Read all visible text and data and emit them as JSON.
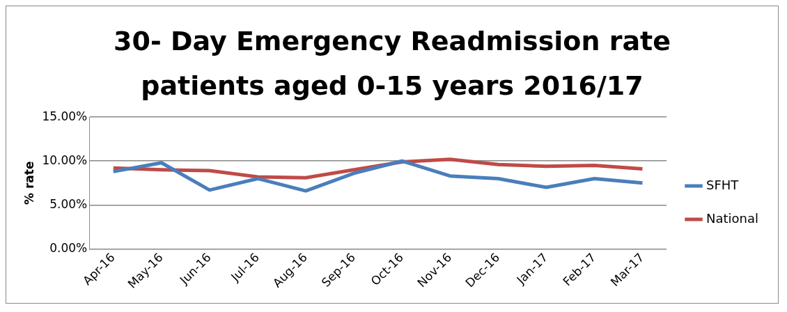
{
  "chart_data": {
    "type": "line",
    "title": "30- Day Emergency Readmission rate patients aged 0-15 years 2016/17",
    "ylabel": "% rate",
    "categories": [
      "Apr-16",
      "May-16",
      "Jun-16",
      "Jul-16",
      "Aug-16",
      "Sep-16",
      "Oct-16",
      "Nov-16",
      "Dec-16",
      "Jan-17",
      "Feb-17",
      "Mar-17"
    ],
    "series": [
      {
        "name": "SFHT",
        "color": "#4a7ebb",
        "values": [
          8.8,
          9.8,
          6.7,
          8.0,
          6.6,
          8.6,
          10.0,
          8.3,
          8.0,
          7.0,
          8.0,
          7.5
        ]
      },
      {
        "name": "National",
        "color": "#be4b48",
        "values": [
          9.2,
          9.0,
          8.9,
          8.2,
          8.1,
          9.0,
          9.9,
          10.2,
          9.6,
          9.4,
          9.5,
          9.1
        ]
      }
    ],
    "ylim": [
      0,
      15
    ],
    "yticks": [
      {
        "value": 0,
        "label": "0.00%"
      },
      {
        "value": 5,
        "label": "5.00%"
      },
      {
        "value": 10,
        "label": "10.00%"
      },
      {
        "value": 15,
        "label": "15.00%"
      }
    ],
    "grid": "y",
    "legend": "right",
    "marker": "none",
    "line_style": "solid"
  }
}
